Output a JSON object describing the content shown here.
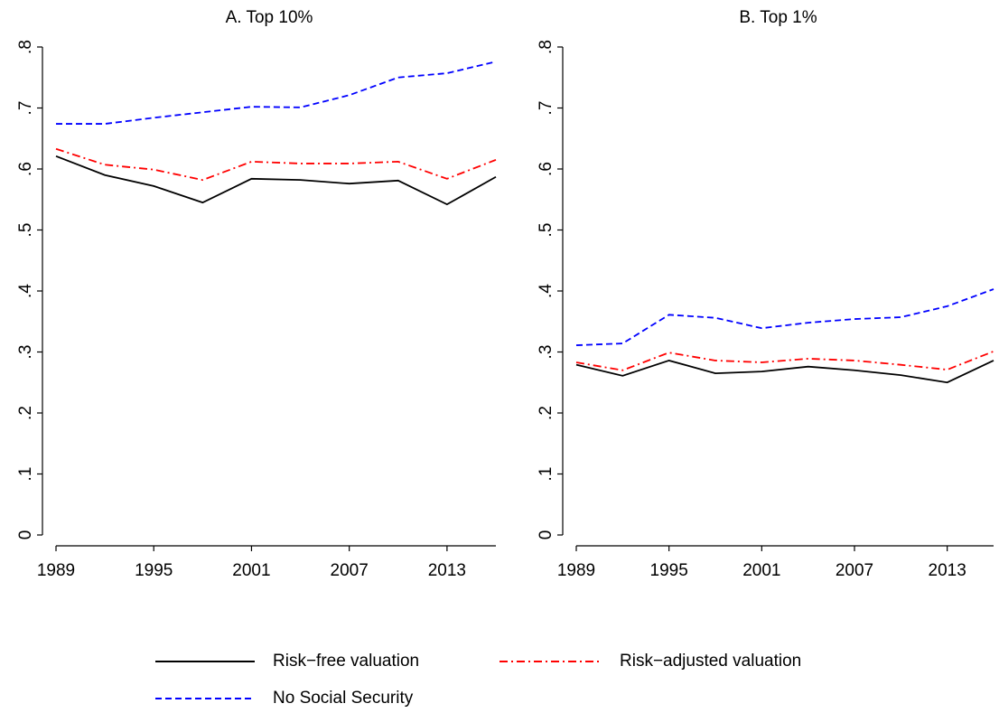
{
  "chart_data": [
    {
      "type": "line",
      "title": "A. Top 10%",
      "x": [
        1989,
        1992,
        1995,
        1998,
        2001,
        2004,
        2007,
        2010,
        2013,
        2016
      ],
      "xlim": [
        1989,
        2016
      ],
      "xticks": [
        1989,
        1995,
        2001,
        2007,
        2013
      ],
      "ylim": [
        0,
        0.8
      ],
      "yticks": [
        0,
        {
          "value": 0.1,
          "label": ".1"
        },
        {
          "value": 0.2,
          "label": ".2"
        },
        {
          "value": 0.3,
          "label": ".3"
        },
        {
          "value": 0.4,
          "label": ".4"
        },
        {
          "value": 0.5,
          "label": ".5"
        },
        {
          "value": 0.6,
          "label": ".6"
        },
        {
          "value": 0.7,
          "label": ".7"
        },
        {
          "value": 0.8,
          "label": ".8"
        }
      ],
      "series": [
        {
          "name": "Risk−free valuation",
          "color": "#000000",
          "linestyle": "solid",
          "values": [
            0.621,
            0.59,
            0.572,
            0.545,
            0.584,
            0.582,
            0.576,
            0.581,
            0.542,
            0.587
          ]
        },
        {
          "name": "Risk−adjusted valuation",
          "color": "#ff0000",
          "linestyle": "dashdot",
          "values": [
            0.633,
            0.607,
            0.599,
            0.582,
            0.612,
            0.609,
            0.609,
            0.612,
            0.584,
            0.615
          ]
        },
        {
          "name": "No Social Security",
          "color": "#0000ff",
          "linestyle": "dash",
          "values": [
            0.674,
            0.674,
            0.684,
            0.693,
            0.702,
            0.701,
            0.721,
            0.75,
            0.757,
            0.776
          ]
        }
      ]
    },
    {
      "type": "line",
      "title": "B. Top 1%",
      "x": [
        1989,
        1992,
        1995,
        1998,
        2001,
        2004,
        2007,
        2010,
        2013,
        2016
      ],
      "xlim": [
        1989,
        2016
      ],
      "xticks": [
        1989,
        1995,
        2001,
        2007,
        2013
      ],
      "ylim": [
        0,
        0.8
      ],
      "yticks": [
        0,
        {
          "value": 0.1,
          "label": ".1"
        },
        {
          "value": 0.2,
          "label": ".2"
        },
        {
          "value": 0.3,
          "label": ".3"
        },
        {
          "value": 0.4,
          "label": ".4"
        },
        {
          "value": 0.5,
          "label": ".5"
        },
        {
          "value": 0.6,
          "label": ".6"
        },
        {
          "value": 0.7,
          "label": ".7"
        },
        {
          "value": 0.8,
          "label": ".8"
        }
      ],
      "series": [
        {
          "name": "Risk−free valuation",
          "color": "#000000",
          "linestyle": "solid",
          "values": [
            0.279,
            0.261,
            0.286,
            0.265,
            0.268,
            0.276,
            0.27,
            0.262,
            0.25,
            0.286
          ]
        },
        {
          "name": "Risk−adjusted valuation",
          "color": "#ff0000",
          "linestyle": "dashdot",
          "values": [
            0.283,
            0.27,
            0.299,
            0.286,
            0.283,
            0.289,
            0.286,
            0.279,
            0.271,
            0.301
          ]
        },
        {
          "name": "No Social Security",
          "color": "#0000ff",
          "linestyle": "dash",
          "values": [
            0.311,
            0.314,
            0.361,
            0.356,
            0.339,
            0.348,
            0.354,
            0.357,
            0.375,
            0.403
          ]
        }
      ]
    }
  ]
}
